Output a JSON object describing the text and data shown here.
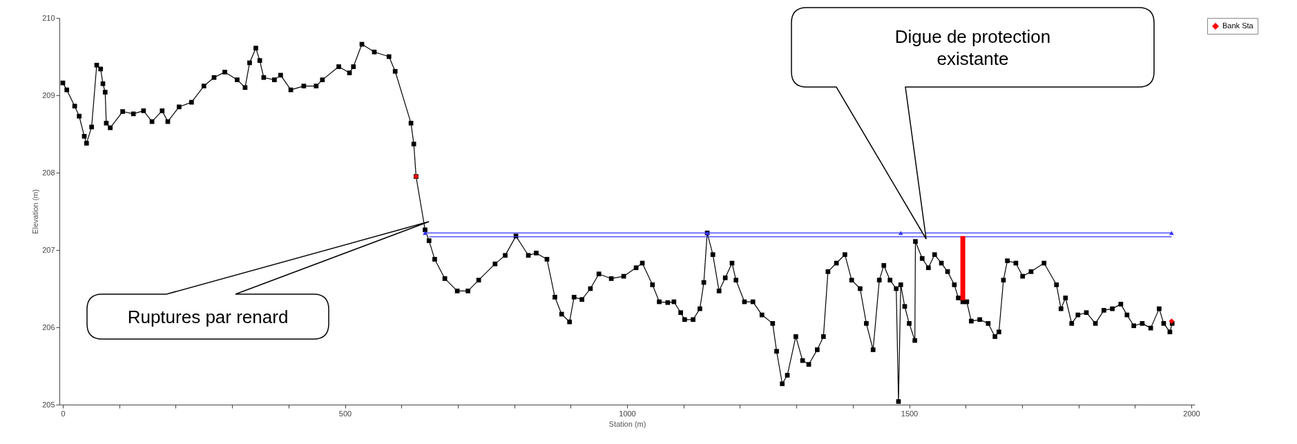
{
  "chart_data": {
    "type": "line",
    "xlabel": "Station (m)",
    "ylabel": "Elevation (m)",
    "xlim": [
      0,
      2000
    ],
    "ylim": [
      205,
      210
    ],
    "xticks": [
      0,
      {
        "value": 100,
        "label": null
      },
      {
        "value": 200,
        "label": null
      },
      {
        "value": 300,
        "label": null
      },
      {
        "value": 400,
        "label": null
      },
      500,
      {
        "value": 600,
        "label": null
      },
      {
        "value": 700,
        "label": null
      },
      {
        "value": 800,
        "label": null
      },
      {
        "value": 900,
        "label": null
      },
      1000,
      {
        "value": 1100,
        "label": null
      },
      {
        "value": 1200,
        "label": null
      },
      {
        "value": 1300,
        "label": null
      },
      {
        "value": 1400,
        "label": null
      },
      1500,
      {
        "value": 1600,
        "label": null
      },
      {
        "value": 1700,
        "label": null
      },
      {
        "value": 1800,
        "label": null
      },
      {
        "value": 1900,
        "label": null
      },
      2000
    ],
    "yticks": [
      205,
      206,
      207,
      208,
      209,
      210
    ],
    "grid": false,
    "legend": "top right",
    "series": [
      {
        "marker": "square",
        "color": "#000000",
        "x": [
          0,
          7,
          21,
          29,
          38,
          42,
          51,
          60,
          67,
          71,
          75,
          77,
          84,
          106,
          125,
          143,
          158,
          176,
          186,
          206,
          228,
          250,
          268,
          287,
          309,
          323,
          331,
          342,
          349,
          356,
          375,
          386,
          404,
          427,
          449,
          460,
          489,
          508,
          515,
          530,
          552,
          578,
          589,
          617,
          622,
          626,
          642,
          649,
          659,
          677,
          699,
          718,
          737,
          766,
          784,
          803,
          825,
          839,
          858,
          872,
          884,
          898,
          906,
          920,
          935,
          950,
          972,
          994,
          1016,
          1027,
          1045,
          1057,
          1072,
          1083,
          1095,
          1102,
          1117,
          1129,
          1136,
          1142,
          1152,
          1163,
          1174,
          1186,
          1193,
          1208,
          1223,
          1239,
          1258,
          1265,
          1275,
          1284,
          1299,
          1311,
          1322,
          1337,
          1348,
          1356,
          1371,
          1386,
          1398,
          1413,
          1424,
          1436,
          1447,
          1455,
          1466,
          1477,
          1481,
          1485,
          1492,
          1500,
          1510,
          1511,
          1523,
          1534,
          1545,
          1557,
          1568,
          1580,
          1587,
          1595,
          1602,
          1610,
          1625,
          1640,
          1652,
          1659,
          1667,
          1674,
          1689,
          1701,
          1716,
          1739,
          1761,
          1769,
          1777,
          1788,
          1799,
          1814,
          1830,
          1845,
          1860,
          1875,
          1886,
          1898,
          1913,
          1928,
          1943,
          1951,
          1962,
          1966
        ],
        "values": [
          209.16,
          209.07,
          208.86,
          208.73,
          208.47,
          208.38,
          208.59,
          209.39,
          209.34,
          209.15,
          209.04,
          208.64,
          208.58,
          208.79,
          208.76,
          208.8,
          208.66,
          208.8,
          208.66,
          208.85,
          208.91,
          209.12,
          209.23,
          209.3,
          209.2,
          209.1,
          209.42,
          209.61,
          209.45,
          209.23,
          209.2,
          209.26,
          209.07,
          209.12,
          209.12,
          209.2,
          209.37,
          209.29,
          209.37,
          209.66,
          209.56,
          209.5,
          209.31,
          208.64,
          208.37,
          207.95,
          207.26,
          207.12,
          206.88,
          206.63,
          206.47,
          206.47,
          206.61,
          206.82,
          206.93,
          207.18,
          206.93,
          206.96,
          206.88,
          206.39,
          206.17,
          206.07,
          206.39,
          206.36,
          206.5,
          206.69,
          206.63,
          206.66,
          206.77,
          206.83,
          206.55,
          206.33,
          206.32,
          206.33,
          206.19,
          206.1,
          206.1,
          206.24,
          206.58,
          207.22,
          206.94,
          206.47,
          206.64,
          206.83,
          206.61,
          206.33,
          206.33,
          206.16,
          206.05,
          205.69,
          205.27,
          205.38,
          205.88,
          205.57,
          205.52,
          205.71,
          205.88,
          206.72,
          206.83,
          206.94,
          206.61,
          206.5,
          206.05,
          205.71,
          206.61,
          206.8,
          206.61,
          206.5,
          205.04,
          206.55,
          206.27,
          206.05,
          205.83,
          207.11,
          206.89,
          206.77,
          206.94,
          206.83,
          206.72,
          206.55,
          206.38,
          206.33,
          206.33,
          206.08,
          206.1,
          206.05,
          205.88,
          205.94,
          206.61,
          206.86,
          206.83,
          206.66,
          206.72,
          206.83,
          206.55,
          206.24,
          206.38,
          206.05,
          206.16,
          206.19,
          206.05,
          206.22,
          206.24,
          206.3,
          206.16,
          206.02,
          206.05,
          205.99,
          206.24,
          206.05,
          205.94,
          206.05
        ]
      },
      {
        "marker": "triangle",
        "color": "#3333ff",
        "x": [
          642,
          1142,
          1485,
          1965
        ],
        "values": [
          207.22,
          207.22,
          207.22,
          207.22
        ]
      },
      {
        "marker": "none",
        "color": "#3333ff",
        "x": [
          649,
          1965
        ],
        "values": [
          207.17,
          207.17
        ]
      },
      {
        "type": "bar",
        "color": "#ff0000",
        "x": [
          1595
        ],
        "base": [
          206.35
        ],
        "values": [
          0.83
        ]
      },
      {
        "type": "scatter",
        "marker": "diamond",
        "name": "Bank Sta",
        "color": "#ff0000",
        "x": [
          626,
          1965
        ],
        "values": [
          207.95,
          206.08
        ]
      }
    ],
    "annotations": [
      "Ruptures par renard",
      "Digue de protection existante"
    ]
  }
}
